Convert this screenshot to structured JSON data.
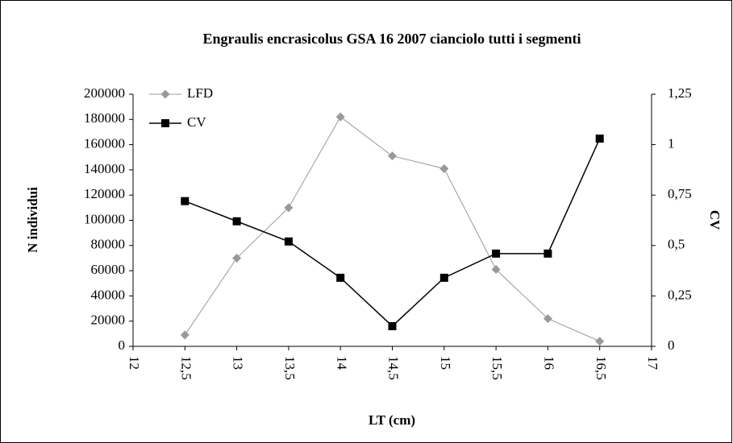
{
  "chart_data": {
    "type": "line",
    "title": "Engraulis encrasicolus GSA 16 2007 cianciolo tutti i segmenti",
    "xlabel": "LT (cm)",
    "ylabel": "N individui",
    "y2label": "CV",
    "x": [
      12.5,
      13,
      13.5,
      14,
      14.5,
      15,
      15.5,
      16,
      16.5
    ],
    "series": [
      {
        "name": "LFD",
        "color": "#999999",
        "marker": "diamond",
        "values": [
          9000,
          70000,
          110000,
          182000,
          151000,
          141000,
          61000,
          22000,
          4000
        ]
      },
      {
        "name": "CV",
        "color": "#000000",
        "marker": "square",
        "axis": "y2",
        "values": [
          0.72,
          0.62,
          0.52,
          0.34,
          0.1,
          0.34,
          0.46,
          0.46,
          1.03
        ]
      }
    ],
    "xlim": [
      12,
      17
    ],
    "xticks": [
      12,
      {
        "value": 12.5,
        "label": "12,5"
      },
      13,
      {
        "value": 13.5,
        "label": "13,5"
      },
      14,
      {
        "value": 14.5,
        "label": "14,5"
      },
      15,
      {
        "value": 15.5,
        "label": "15,5"
      },
      16,
      {
        "value": 16.5,
        "label": "16,5"
      },
      17
    ],
    "ylim": [
      0,
      200000
    ],
    "yticks": [
      0,
      20000,
      40000,
      60000,
      80000,
      100000,
      120000,
      140000,
      160000,
      180000,
      200000
    ],
    "y2lim": [
      0,
      1.25
    ],
    "y2ticks": [
      0,
      {
        "value": 0.25,
        "label": "0,25"
      },
      {
        "value": 0.5,
        "label": "0,5"
      },
      {
        "value": 0.75,
        "label": "0,75"
      },
      1,
      {
        "value": 1.25,
        "label": "1,25"
      }
    ],
    "grid": false,
    "legend": "upper left"
  }
}
